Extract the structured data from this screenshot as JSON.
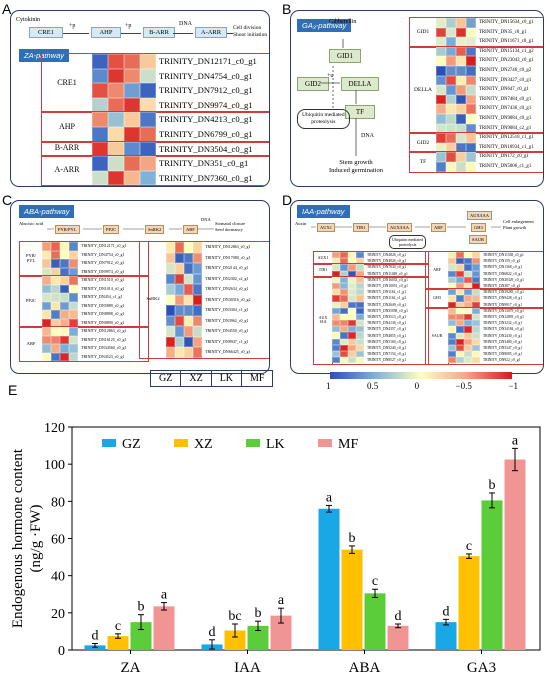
{
  "panels": {
    "A": {
      "label": "A",
      "pathway_tag": "ZA-pathway",
      "nodes": {
        "cytokinin": "Cytokinin",
        "cre1": "CRE1",
        "ahp": "AHP",
        "barr": "B-ARR",
        "aarr": "A-ARR",
        "p1": "+p",
        "p2": "+p",
        "dna": "DNA",
        "outcome": "Cell division\nShoot initiation"
      },
      "groups": [
        {
          "name": "CRE1",
          "genes": [
            "TRINITY_DN12171_c0_g1",
            "TRINITY_DN4754_c0_g1",
            "TRINITY_DN7912_c0_g1",
            "TRINITY_DN9974_c0_g1"
          ]
        },
        {
          "name": "AHP",
          "genes": [
            "TRINITY_DN4213_c0_g1",
            "TRINITY_DN6799_c0_g1"
          ]
        },
        {
          "name": "B-ARR",
          "genes": [
            "TRINITY_DN3504_c0_g1"
          ]
        },
        {
          "name": "A-ARR",
          "genes": [
            "TRINITY_DN351_c0_g1",
            "TRINITY_DN7360_c0_g1"
          ]
        }
      ],
      "heatmap": [
        [
          -0.9,
          0.8,
          0.7,
          0.3
        ],
        [
          -0.7,
          0.9,
          0.6,
          -0.2
        ],
        [
          0.8,
          0.6,
          -0.6,
          -0.9
        ],
        [
          -0.3,
          0.7,
          0.9,
          0.2
        ],
        [
          0.6,
          -0.4,
          0.3,
          -0.8
        ],
        [
          -0.8,
          0.2,
          0.9,
          0.7
        ],
        [
          0.9,
          0.3,
          -0.7,
          -0.9
        ],
        [
          -0.9,
          -0.2,
          0.7,
          0.5
        ],
        [
          -0.2,
          0.9,
          0.4,
          -0.5
        ]
      ]
    },
    "B": {
      "label": "B",
      "pathway_tag": "GA₃-pathway",
      "nodes": {
        "gibberellin": "Gibberellin",
        "gid1": "GID1",
        "gid2": "GID2",
        "della": "DELLA",
        "tf": "TF",
        "ubq": "Ubiquitin mediated\nproteolysis",
        "p": "+u",
        "dna": "DNA",
        "outcome": "Stem growth\nInduced germination"
      },
      "groups": [
        {
          "name": "GID1",
          "genes": [
            "TRINITY_DN15634_c0_g1",
            "TRINITY_DN35_c0_g1",
            "TRINITY_DN11671_c0_g1"
          ]
        },
        {
          "name": "DELLA",
          "genes": [
            "TRINITY_DN15134_c1_g2",
            "TRINITY_DN23043_c0_g1",
            "TRINITY_DN2746_c0_g2",
            "TRINITY_DN3427_c0_g1",
            "TRINITY_DN647_c0_g1",
            "TRINITY_DN7484_c0_g1",
            "TRINITY_DN7436_c0_g1",
            "TRINITY_DN9084_c0_g1",
            "TRINITY_DN9084_c2_g1"
          ]
        },
        {
          "name": "GID2",
          "genes": [
            "TRINITY_DN12510_c1_g1",
            "TRINITY_DN10934_c1_g1"
          ]
        },
        {
          "name": "TF",
          "genes": [
            "TRINITY_DN172_c0_g1",
            "TRINITY_DN5006_c1_g1"
          ]
        }
      ]
    },
    "C": {
      "label": "C",
      "pathway_tag": "ABA-pathway",
      "nodes": {
        "aba": "Abscisic acid",
        "pyr": "PYR/PYL",
        "pp2c": "PP2C",
        "snrk2": "SnRK2",
        "abf": "ABF",
        "dna": "DNA",
        "outcome": "Stomatal closure\nSeed dormancy"
      },
      "left_groups": [
        {
          "name": "PYR/\nPYL",
          "genes": [
            "TRINITY_DN12171_c0_g1",
            "TRINITY_DN4754_c0_g1",
            "TRINITY_DN7912_c0_g1",
            "TRINITY_DN9974_c0_g1"
          ]
        },
        {
          "name": "PP2C",
          "genes": [
            "TRINITY_DN1510_c0_g1",
            "TRINITY_DN1014_c0_g1",
            "TRINITY_DN454_c1_g1",
            "TRINITY_DN5889_c0_g1",
            "TRINITY_DN8898_c0_g1",
            "TRINITY_DN8890_c0_g1"
          ]
        },
        {
          "name": "ABF",
          "genes": [
            "TRINITY_DN12863_c0_g1",
            "TRINITY_DN16125_c0_g1",
            "TRINITY_DN34560_c0_g1",
            "TRINITY_DN4523_c0_g1"
          ]
        }
      ],
      "right_groups": [
        {
          "name": "SnRK2",
          "genes": [
            "TRINITY_DN12863_c0_g1",
            "TRINITY_DN17080_c0_g1",
            "TRINITY_DN2144_c0_g1",
            "TRINITY_DN2302_c2_g1",
            "TRINITY_DN2634_c0_g1",
            "TRINITY_DN30316_c0_g2",
            "TRINITY_DN3304_c1_g1",
            "TRINITY_DN3962_c0_g1",
            "TRINITY_DN4550_c0_g1",
            "TRINITY_DN8947_c1_g1",
            "TRINITY_DN66425_c0_g1"
          ]
        }
      ]
    },
    "D": {
      "label": "D",
      "pathway_tag": "IAA-pathway",
      "nodes": {
        "auxin": "Auxin",
        "aux1": "AUX1",
        "tir1": "TIR1",
        "auxiaa": "AUX/IAA",
        "arf": "ARF",
        "ubq": "Ubiquitin mediated\nproteolysis",
        "out1": "AUX/IAA",
        "out2": "GH3",
        "out3": "SAUR",
        "outcome": "Cell enlargement\nPlant growth"
      },
      "left_groups": [
        {
          "name": "AUX1",
          "genes": [
            "TRINITY_DN4826_c0_g1",
            "TRINITY_DN4926_c0_g1"
          ]
        },
        {
          "name": "TIR1",
          "genes": [
            "TRINITY_DN7830_c0_g1",
            "TRINITY_DN11049_c0_g1"
          ]
        },
        {
          "name": "AUX\nIAA",
          "genes": [
            "TRINITY_DN16033_c0_g1",
            "TRINITY_DN10051_c0_g1",
            "TRINITY_DN1162_c1_g1",
            "TRINITY_DN1162_c1_g2",
            "TRINITY_DN2649_c0_g1",
            "TRINITY_DN35058_c0_g1",
            "TRINITY_DN3513_c0_g1",
            "TRINITY_DN4136_c0_g1",
            "TRINITY_DN4357_c0_g1",
            "TRINITY_DN4855_c0_g1",
            "TRINITY_DN5160_c0_g1",
            "TRINITY_DN5240_c0_g1",
            "TRINITY_DN7154_c0_g1",
            "TRINITY_DN8527_c0_g1"
          ]
        }
      ],
      "right_groups": [
        {
          "name": "ARF",
          "genes": [
            "TRINITY_DN11538_c0_g1",
            "TRINITY_DN159_c0_g1",
            "TRINITY_DN1368_c0_g1",
            "TRINITY_DN6822_c0_g1",
            "TRINITY_DN20329_c0_g1",
            "TRINITY_DN387_c0_g1"
          ]
        },
        {
          "name": "GH3",
          "genes": [
            "TRINITY_DN39283_c0_g1",
            "TRINITY_DN9428_c0_g1",
            "TRINITY_DN9917_c0_g1"
          ]
        },
        {
          "name": "SAUR",
          "genes": [
            "TRINITY_DN13079_c0_g1",
            "TRINITY_DN12893_c0_g1",
            "TRINITY_DN3232_c0_g1",
            "TRINITY_DN34184_c0_g1",
            "TRINITY_DN2430_c0_g1",
            "TRINITY_DN3480_c0_g1",
            "TRINITY_DN5347_c0_g1",
            "TRINITY_DN8085_c0_g1",
            "TRINITY_DN922_c0_g1"
          ]
        }
      ]
    },
    "E": {
      "label": "E"
    }
  },
  "sample_legend": [
    "GZ",
    "XZ",
    "LK",
    "MF"
  ],
  "colorbar": {
    "ticks": [
      "1",
      "0.5",
      "0",
      "−0.5",
      "−1"
    ],
    "high_color": "#d7191c",
    "mid_color": "#ffffbf",
    "low_color": "#2b4fb8"
  },
  "chart_data": {
    "type": "bar",
    "categories": [
      "ZA",
      "IAA",
      "ABA",
      "GA3"
    ],
    "ylabel": "Endogenous hormone content\n(ng/g ·FW)",
    "ylim": [
      0,
      120
    ],
    "yticks": [
      0,
      20,
      40,
      60,
      80,
      100,
      120
    ],
    "legend_position": "top-left",
    "series": [
      {
        "name": "GZ",
        "color": "#1aa7e6",
        "values": [
          2.5,
          3.0,
          76.0,
          15.0
        ],
        "errors": [
          1.0,
          2.5,
          1.8,
          1.5
        ],
        "letters": [
          "d",
          "d",
          "a",
          "d"
        ]
      },
      {
        "name": "XZ",
        "color": "#ffc000",
        "values": [
          7.5,
          10.5,
          54.0,
          50.5
        ],
        "errors": [
          1.2,
          3.5,
          2.0,
          1.2
        ],
        "letters": [
          "c",
          "bc",
          "b",
          "c"
        ]
      },
      {
        "name": "LK",
        "color": "#5ccd3a",
        "values": [
          15.0,
          13.0,
          30.5,
          80.5
        ],
        "errors": [
          4.0,
          2.5,
          2.2,
          4.0
        ],
        "letters": [
          "b",
          "b",
          "c",
          "b"
        ]
      },
      {
        "name": "MF",
        "color": "#f09494",
        "values": [
          23.5,
          18.5,
          13.0,
          102.5
        ],
        "errors": [
          2.0,
          4.0,
          1.0,
          6.0
        ],
        "letters": [
          "a",
          "a",
          "d",
          "a"
        ]
      }
    ]
  }
}
